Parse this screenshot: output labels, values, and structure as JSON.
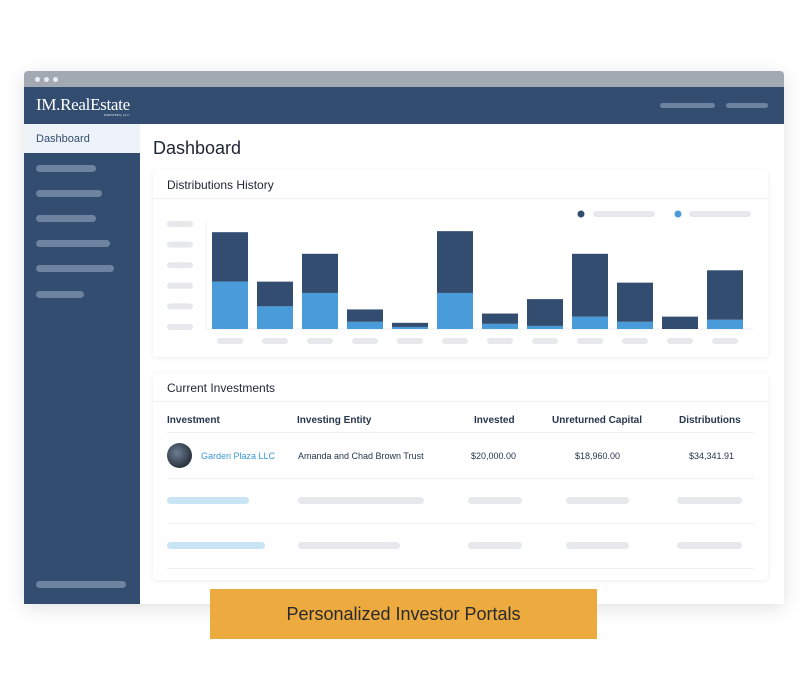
{
  "app": {
    "logo": "IM.RealEstate",
    "logo_sub": "PARTNERS, LLC"
  },
  "sidebar": {
    "active_item": "Dashboard"
  },
  "page": {
    "title": "Dashboard"
  },
  "distributions": {
    "title": "Distributions History",
    "colors": {
      "dark": "#324d70",
      "light": "#4a9bd9"
    }
  },
  "chart_data": {
    "type": "bar",
    "stacked": true,
    "ylim": [
      0,
      5.2
    ],
    "grid": false,
    "legend": "top-right",
    "categories": [
      "",
      "",
      "",
      "",
      "",
      "",
      "",
      "",
      "",
      "",
      "",
      ""
    ],
    "series": [
      {
        "color": "#4a9bd9",
        "values": [
          2.3,
          1.1,
          1.75,
          0.35,
          0.1,
          1.75,
          0.25,
          0.15,
          0.6,
          0.35,
          0,
          0.45
        ]
      },
      {
        "color": "#324d70",
        "values": [
          2.4,
          1.2,
          1.9,
          0.6,
          0.2,
          3.0,
          0.5,
          1.3,
          3.05,
          1.9,
          0.6,
          2.4
        ]
      }
    ]
  },
  "investments": {
    "title": "Current Investments",
    "columns": [
      "Investment",
      "Investing Entity",
      "Invested",
      "Unreturned Capital",
      "Distributions"
    ],
    "rows": [
      {
        "investment": "Garden Plaza LLC",
        "entity": "Amanda and Chad Brown Trust",
        "invested": "$20,000.00",
        "unreturned": "$18,960.00",
        "distributions": "$34,341.91"
      }
    ],
    "link_color": "#3a98d4"
  },
  "banner": {
    "text": "Personalized Investor Portals",
    "color": "#ecaa3f"
  }
}
